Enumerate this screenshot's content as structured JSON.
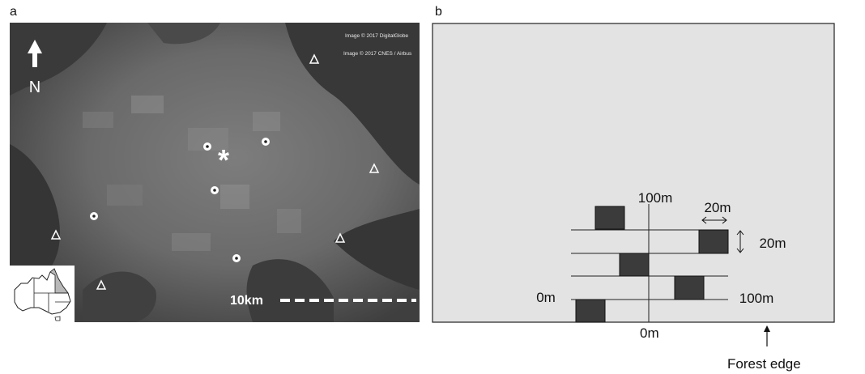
{
  "figure": {
    "panel_a": {
      "label": "a",
      "credits": [
        "Image © 2017 DigitalGlobe",
        "Image © 2017 CNES / Airbus"
      ],
      "north_label": "N",
      "scale_label": "10km",
      "icons": [
        "north-arrow-icon",
        "asterisk-icon",
        "circle-site-icon",
        "triangle-site-icon",
        "australia-map-icon"
      ]
    },
    "panel_b": {
      "label": "b",
      "top_label": "100m",
      "bottom_label": "0m",
      "left_label": "0m",
      "right_label": "100m",
      "quadrat_width_label": "20m",
      "quadrat_height_label": "20m",
      "forest_edge_label": "Forest edge",
      "colors": {
        "background": "#e3e3e3",
        "quadrat": "#3b3b3b"
      }
    }
  }
}
